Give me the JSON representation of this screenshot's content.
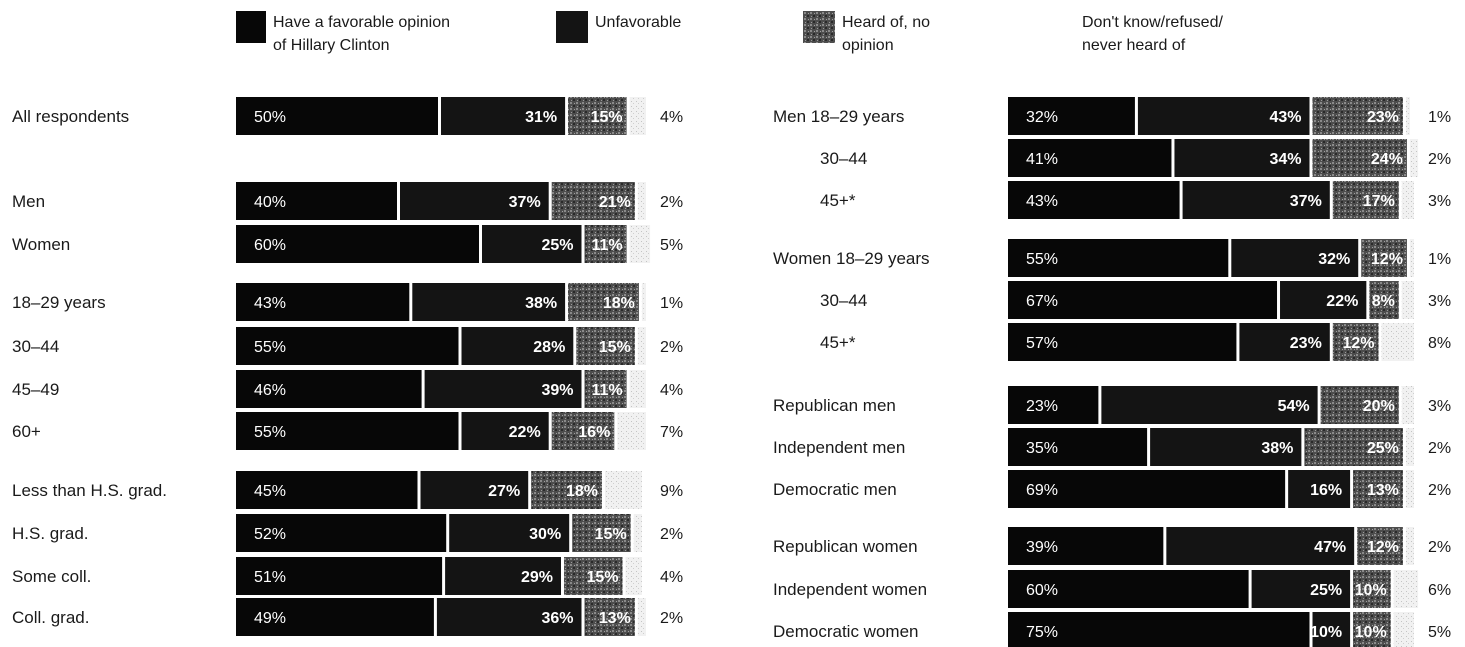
{
  "legend": {
    "favorable_line1": "Have a favorable opinion",
    "favorable_line2": "of Hillary Clinton",
    "unfavorable": "Unfavorable",
    "noopinion_line1": "Heard of, no",
    "noopinion_line2": "opinion",
    "dk_line1": "Don't know/refused/",
    "dk_line2": "never heard of"
  },
  "colors": {
    "favorable": "#070707",
    "unfavorable": "#141414",
    "no_opinion": "#4a4a4a",
    "dk": "#dadada"
  },
  "chart_data": {
    "type": "bar",
    "orientation": "horizontal",
    "stacked": true,
    "series_names": [
      "Have a favorable opinion of Hillary Clinton",
      "Unfavorable",
      "Heard of, no opinion",
      "Don't know/refused/never heard of"
    ],
    "panels": [
      {
        "rows": [
          {
            "label": "All respondents",
            "values": [
              50,
              31,
              15,
              4
            ]
          },
          {
            "label": "Men",
            "values": [
              40,
              37,
              21,
              2
            ]
          },
          {
            "label": "Women",
            "values": [
              60,
              25,
              11,
              5
            ]
          },
          {
            "label": "18–29 years",
            "values": [
              43,
              38,
              18,
              1
            ]
          },
          {
            "label": "30–44",
            "values": [
              55,
              28,
              15,
              2
            ]
          },
          {
            "label": "45–49",
            "values": [
              46,
              39,
              11,
              4
            ]
          },
          {
            "label": "60+",
            "values": [
              55,
              22,
              16,
              7
            ]
          },
          {
            "label": "Less than H.S. grad.",
            "values": [
              45,
              27,
              18,
              9
            ]
          },
          {
            "label": "H.S. grad.",
            "values": [
              52,
              30,
              15,
              2
            ]
          },
          {
            "label": "Some coll.",
            "values": [
              51,
              29,
              15,
              4
            ]
          },
          {
            "label": "Coll. grad.",
            "values": [
              49,
              36,
              13,
              2
            ]
          }
        ]
      },
      {
        "rows": [
          {
            "label": "Men 18–29 years",
            "values": [
              32,
              43,
              23,
              1
            ]
          },
          {
            "label": "30–44",
            "values": [
              41,
              34,
              24,
              2
            ]
          },
          {
            "label": "45+*",
            "values": [
              43,
              37,
              17,
              3
            ]
          },
          {
            "label": "Women 18–29 years",
            "values": [
              55,
              32,
              12,
              1
            ]
          },
          {
            "label": "30–44",
            "values": [
              67,
              22,
              8,
              3
            ]
          },
          {
            "label": "45+*",
            "values": [
              57,
              23,
              12,
              8
            ]
          },
          {
            "label": "Republican men",
            "values": [
              23,
              54,
              20,
              3
            ]
          },
          {
            "label": "Independent men",
            "values": [
              35,
              38,
              25,
              2
            ]
          },
          {
            "label": "Democratic men",
            "values": [
              69,
              16,
              13,
              2
            ]
          },
          {
            "label": "Republican women",
            "values": [
              39,
              47,
              12,
              2
            ]
          },
          {
            "label": "Independent women",
            "values": [
              60,
              25,
              10,
              6
            ]
          },
          {
            "label": "Democratic women",
            "values": [
              75,
              10,
              10,
              5
            ]
          }
        ]
      }
    ]
  }
}
